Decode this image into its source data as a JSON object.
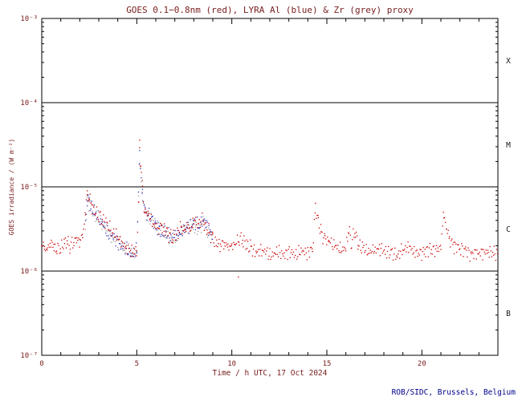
{
  "colors": {
    "axis": "#000000",
    "text": "#7a2020",
    "credit": "#00008b",
    "class_labels": "#1a1a1a",
    "background": "#ffffff"
  },
  "chart_data": {
    "type": "scatter",
    "title": "GOES 0.1−0.8nm (red), LYRA Al (blue) & Zr (grey) proxy",
    "xlabel": "Time / h UTC, 17 Oct 2024",
    "ylabel": "GOES irradiance / (W m⁻²)",
    "credit": "ROB/SIDC, Brussels, Belgium",
    "xlim": [
      0,
      24
    ],
    "ylim_log10": [
      -7,
      -3
    ],
    "xticks_minor_step": 1,
    "xticks_major": [
      0,
      5,
      10,
      15,
      20
    ],
    "xtick_labels": [
      "0",
      "5",
      "10",
      "15",
      "20"
    ],
    "ytick_log10": [
      -3,
      -4,
      -5,
      -6,
      -7
    ],
    "ytick_labels": [
      "10⁻³",
      "10⁻⁴",
      "10⁻⁵",
      "10⁻⁶",
      "10⁻⁷"
    ],
    "boundary_lines_log10": [
      -4,
      -5,
      -6
    ],
    "flare_class_labels": [
      {
        "label": "X",
        "band_log10": [
          -4,
          -3
        ]
      },
      {
        "label": "M",
        "band_log10": [
          -5,
          -4
        ]
      },
      {
        "label": "C",
        "band_log10": [
          -6,
          -5
        ]
      },
      {
        "label": "B",
        "band_log10": [
          -7,
          -6
        ]
      }
    ],
    "grid": false,
    "legend": "in title",
    "series": [
      {
        "name": "GOES 0.1-0.8nm",
        "color": "#cc0000",
        "points": [
          [
            0.0,
            2e-06
          ],
          [
            0.15,
            1.9e-06
          ],
          [
            0.3,
            1.8e-06
          ],
          [
            0.5,
            2.1e-06
          ],
          [
            0.65,
            1.9e-06
          ],
          [
            0.8,
            1.85e-06
          ],
          [
            1.0,
            1.8e-06
          ],
          [
            1.2,
            2.1e-06
          ],
          [
            1.35,
            2.3e-06
          ],
          [
            1.5,
            2e-06
          ],
          [
            1.7,
            2.2e-06
          ],
          [
            1.85,
            2.5e-06
          ],
          [
            2.0,
            2.2e-06
          ],
          [
            2.15,
            2.6e-06
          ],
          [
            2.3,
            5e-06
          ],
          [
            2.4,
            8.5e-06
          ],
          [
            2.5,
            7.2e-06
          ],
          [
            2.65,
            6e-06
          ],
          [
            2.8,
            5.2e-06
          ],
          [
            3.0,
            4.5e-06
          ],
          [
            3.2,
            4e-06
          ],
          [
            3.45,
            3.4e-06
          ],
          [
            3.7,
            2.9e-06
          ],
          [
            3.95,
            2.5e-06
          ],
          [
            4.2,
            2.1e-06
          ],
          [
            4.45,
            1.85e-06
          ],
          [
            4.7,
            1.65e-06
          ],
          [
            4.9,
            1.6e-06
          ],
          [
            5.0,
            1.8e-06
          ],
          [
            5.1,
            6e-06
          ],
          [
            5.15,
            3.5e-05
          ],
          [
            5.2,
            2e-05
          ],
          [
            5.3,
            9e-06
          ],
          [
            5.4,
            5.5e-06
          ],
          [
            5.5,
            4.6e-06
          ],
          [
            5.6,
            5e-06
          ],
          [
            5.72,
            4.3e-06
          ],
          [
            5.85,
            3.8e-06
          ],
          [
            6.0,
            3.4e-06
          ],
          [
            6.15,
            3.2e-06
          ],
          [
            6.3,
            3.5e-06
          ],
          [
            6.45,
            3e-06
          ],
          [
            6.6,
            2.8e-06
          ],
          [
            6.75,
            2.6e-06
          ],
          [
            6.9,
            2.5e-06
          ],
          [
            7.05,
            2.7e-06
          ],
          [
            7.2,
            3e-06
          ],
          [
            7.35,
            3.3e-06
          ],
          [
            7.5,
            2.9e-06
          ],
          [
            7.65,
            3.5e-06
          ],
          [
            7.8,
            3.1e-06
          ],
          [
            7.95,
            3.7e-06
          ],
          [
            8.1,
            3.9e-06
          ],
          [
            8.25,
            3.4e-06
          ],
          [
            8.4,
            4.1e-06
          ],
          [
            8.55,
            3.8e-06
          ],
          [
            8.7,
            3.2e-06
          ],
          [
            8.85,
            2.8e-06
          ],
          [
            9.0,
            2.4e-06
          ],
          [
            9.2,
            2.1e-06
          ],
          [
            9.4,
            2e-06
          ],
          [
            9.6,
            2.1e-06
          ],
          [
            9.8,
            2e-06
          ],
          [
            10.0,
            2.05e-06
          ],
          [
            10.2,
            2.2e-06
          ],
          [
            10.4,
            2.4e-06
          ],
          [
            10.6,
            2.3e-06
          ],
          [
            10.8,
            2e-06
          ],
          [
            11.0,
            1.9e-06
          ],
          [
            11.3,
            1.75e-06
          ],
          [
            11.6,
            1.7e-06
          ],
          [
            12.0,
            1.6e-06
          ],
          [
            12.4,
            1.62e-06
          ],
          [
            12.8,
            1.65e-06
          ],
          [
            13.2,
            1.6e-06
          ],
          [
            13.6,
            1.65e-06
          ],
          [
            14.0,
            1.7e-06
          ],
          [
            14.25,
            1.9e-06
          ],
          [
            14.4,
            5.5e-06
          ],
          [
            14.55,
            3.8e-06
          ],
          [
            14.7,
            2.8e-06
          ],
          [
            14.9,
            2.4e-06
          ],
          [
            15.1,
            2.2e-06
          ],
          [
            15.4,
            2e-06
          ],
          [
            15.7,
            1.9e-06
          ],
          [
            16.0,
            1.85e-06
          ],
          [
            16.15,
            3.2e-06
          ],
          [
            16.3,
            2.2e-06
          ],
          [
            16.5,
            3e-06
          ],
          [
            16.65,
            2.1e-06
          ],
          [
            16.9,
            1.9e-06
          ],
          [
            17.2,
            1.8e-06
          ],
          [
            17.5,
            1.75e-06
          ],
          [
            17.8,
            1.8e-06
          ],
          [
            18.1,
            1.65e-06
          ],
          [
            18.4,
            1.7e-06
          ],
          [
            18.7,
            1.6e-06
          ],
          [
            19.0,
            1.75e-06
          ],
          [
            19.3,
            1.85e-06
          ],
          [
            19.6,
            1.7e-06
          ],
          [
            19.9,
            1.65e-06
          ],
          [
            20.2,
            1.8e-06
          ],
          [
            20.5,
            1.75e-06
          ],
          [
            20.8,
            1.7e-06
          ],
          [
            21.0,
            1.9e-06
          ],
          [
            21.15,
            5e-06
          ],
          [
            21.3,
            3.2e-06
          ],
          [
            21.45,
            2.4e-06
          ],
          [
            21.7,
            2e-06
          ],
          [
            22.0,
            1.8e-06
          ],
          [
            22.3,
            1.7e-06
          ],
          [
            22.6,
            1.65e-06
          ],
          [
            22.9,
            1.7e-06
          ],
          [
            23.2,
            1.6e-06
          ],
          [
            23.5,
            1.65e-06
          ],
          [
            23.8,
            1.6e-06
          ],
          [
            24.0,
            1.6e-06
          ]
        ],
        "outliers": [
          [
            10.35,
            8.5e-07
          ]
        ]
      },
      {
        "name": "LYRA Al proxy",
        "color": "#3333bb",
        "points": [
          [
            2.3,
            3.5e-06
          ],
          [
            2.4,
            7.5e-06
          ],
          [
            2.5,
            6.5e-06
          ],
          [
            2.8,
            4.8e-06
          ],
          [
            3.1,
            3.8e-06
          ],
          [
            3.5,
            2.9e-06
          ],
          [
            3.9,
            2.3e-06
          ],
          [
            4.3,
            1.9e-06
          ],
          [
            4.7,
            1.6e-06
          ],
          [
            5.0,
            1.8e-06
          ],
          [
            5.15,
            2.5e-05
          ],
          [
            5.3,
            8e-06
          ],
          [
            5.45,
            5e-06
          ],
          [
            5.6,
            4.6e-06
          ],
          [
            5.8,
            4e-06
          ],
          [
            6.0,
            3.3e-06
          ],
          [
            6.2,
            3.1e-06
          ],
          [
            6.5,
            2.8e-06
          ],
          [
            6.8,
            2.5e-06
          ],
          [
            7.1,
            2.6e-06
          ],
          [
            7.4,
            3.1e-06
          ],
          [
            7.7,
            3.4e-06
          ],
          [
            8.0,
            3.6e-06
          ],
          [
            8.3,
            3.4e-06
          ],
          [
            8.5,
            4.1e-06
          ],
          [
            8.8,
            3.1e-06
          ],
          [
            9.0,
            2.6e-06
          ]
        ],
        "outliers": []
      },
      {
        "name": "LYRA Zr proxy",
        "color": "#999999",
        "points": [
          [
            2.3,
            3.2e-06
          ],
          [
            2.4,
            7e-06
          ],
          [
            2.6,
            5.8e-06
          ],
          [
            2.9,
            4.4e-06
          ],
          [
            3.2,
            3.5e-06
          ],
          [
            3.6,
            2.7e-06
          ],
          [
            4.0,
            2.2e-06
          ],
          [
            4.4,
            1.8e-06
          ],
          [
            4.8,
            1.55e-06
          ],
          [
            5.0,
            1.7e-06
          ],
          [
            5.15,
            2.2e-05
          ],
          [
            5.3,
            7.5e-06
          ],
          [
            5.5,
            4.6e-06
          ],
          [
            5.7,
            4.1e-06
          ],
          [
            5.95,
            3.4e-06
          ],
          [
            6.2,
            3e-06
          ],
          [
            6.5,
            2.7e-06
          ],
          [
            6.8,
            2.4e-06
          ],
          [
            7.1,
            2.5e-06
          ],
          [
            7.4,
            3e-06
          ],
          [
            7.7,
            3.3e-06
          ],
          [
            8.0,
            3.4e-06
          ],
          [
            8.3,
            3.2e-06
          ],
          [
            8.5,
            3.9e-06
          ],
          [
            8.8,
            3e-06
          ],
          [
            9.0,
            2.5e-06
          ]
        ],
        "outliers": []
      }
    ]
  }
}
